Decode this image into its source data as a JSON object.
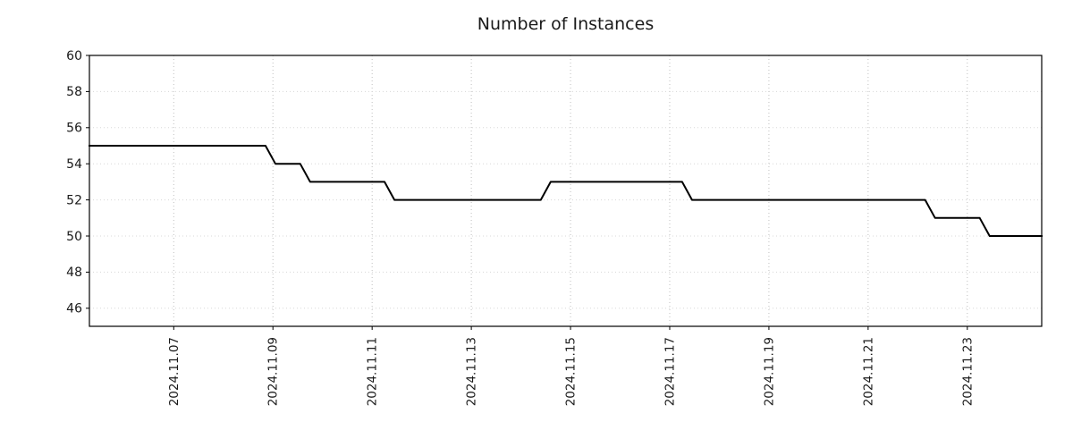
{
  "chart_data": {
    "type": "line",
    "title": "Number of Instances",
    "xlabel": "",
    "ylabel": "",
    "legend": "none",
    "grid": true,
    "x_axis": {
      "unit": "date (day of 2024.11)",
      "xlim": [
        5.3,
        24.5
      ],
      "ticks": [
        {
          "value": 7,
          "label": "2024.11.07"
        },
        {
          "value": 9,
          "label": "2024.11.09"
        },
        {
          "value": 11,
          "label": "2024.11.11"
        },
        {
          "value": 13,
          "label": "2024.11.13"
        },
        {
          "value": 15,
          "label": "2024.11.15"
        },
        {
          "value": 17,
          "label": "2024.11.17"
        },
        {
          "value": 19,
          "label": "2024.11.19"
        },
        {
          "value": 21,
          "label": "2024.11.21"
        },
        {
          "value": 23,
          "label": "2024.11.23"
        }
      ]
    },
    "y_axis": {
      "ylim": [
        45,
        60
      ],
      "ticks": [
        46,
        48,
        50,
        52,
        54,
        56,
        58,
        60
      ]
    },
    "colors": {
      "line": "#000000",
      "grid_v": "#c0c0c0",
      "grid_h": "#d8d8d8",
      "axis": "#000000",
      "background": "#ffffff"
    },
    "series": [
      {
        "name": "Number of Instances",
        "color": "#000000",
        "line_width": 2,
        "step": true,
        "points": [
          {
            "x": 5.3,
            "y": 55
          },
          {
            "x": 8.85,
            "y": 55
          },
          {
            "x": 9.05,
            "y": 54
          },
          {
            "x": 9.55,
            "y": 54
          },
          {
            "x": 9.75,
            "y": 53
          },
          {
            "x": 11.25,
            "y": 53
          },
          {
            "x": 11.45,
            "y": 52
          },
          {
            "x": 14.4,
            "y": 52
          },
          {
            "x": 14.6,
            "y": 53
          },
          {
            "x": 17.25,
            "y": 53
          },
          {
            "x": 17.45,
            "y": 52
          },
          {
            "x": 22.15,
            "y": 52
          },
          {
            "x": 22.35,
            "y": 51
          },
          {
            "x": 23.25,
            "y": 51
          },
          {
            "x": 23.45,
            "y": 50
          },
          {
            "x": 24.5,
            "y": 50
          }
        ]
      }
    ]
  }
}
